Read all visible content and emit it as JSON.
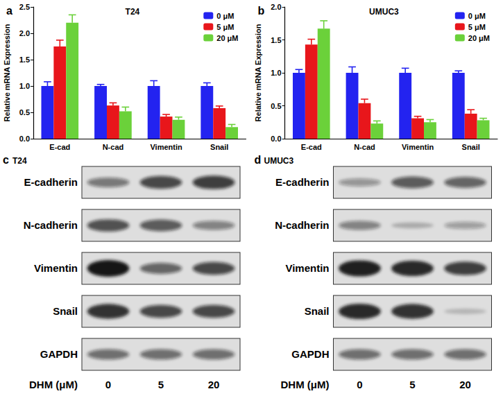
{
  "chart_data": [
    {
      "type": "bar",
      "panel": "a",
      "title": "T24",
      "y_label": "Relative mRNA Expression",
      "categories": [
        "E-cad",
        "N-cad",
        "Vimentin",
        "Snail"
      ],
      "series": [
        {
          "name": "0 μM",
          "color": "#2323f0",
          "values": [
            1.0,
            1.0,
            1.0,
            1.0
          ],
          "errors": [
            0.08,
            0.03,
            0.1,
            0.06
          ]
        },
        {
          "name": "5 μM",
          "color": "#e8161b",
          "values": [
            1.75,
            0.63,
            0.42,
            0.58
          ],
          "errors": [
            0.12,
            0.05,
            0.04,
            0.04
          ]
        },
        {
          "name": "20 μM",
          "color": "#6bd13a",
          "values": [
            2.2,
            0.52,
            0.36,
            0.22
          ],
          "errors": [
            0.15,
            0.08,
            0.05,
            0.05
          ]
        }
      ],
      "ylim": [
        0,
        2.5
      ],
      "yticks": [
        {
          "value": 0,
          "label": "0.0"
        },
        0.5,
        {
          "value": 1,
          "label": "1.0"
        },
        1.5,
        {
          "value": 2,
          "label": "2.0"
        },
        2.5
      ],
      "grid": false,
      "legend": "upper right"
    },
    {
      "type": "bar",
      "panel": "b",
      "title": "UMUC3",
      "y_label": "Relative mRNA Expression",
      "categories": [
        "E-cad",
        "N-cad",
        "Vimentin",
        "Snail"
      ],
      "series": [
        {
          "name": "0 μM",
          "color": "#2323f0",
          "values": [
            1.0,
            1.0,
            1.0,
            1.0
          ],
          "errors": [
            0.05,
            0.09,
            0.07,
            0.03
          ]
        },
        {
          "name": "5 μM",
          "color": "#e8161b",
          "values": [
            1.43,
            0.54,
            0.31,
            0.38
          ],
          "errors": [
            0.08,
            0.06,
            0.03,
            0.06
          ]
        },
        {
          "name": "20 μM",
          "color": "#6bd13a",
          "values": [
            1.67,
            0.23,
            0.25,
            0.28
          ],
          "errors": [
            0.12,
            0.04,
            0.04,
            0.03
          ]
        }
      ],
      "ylim": [
        0,
        2
      ],
      "yticks": [
        {
          "value": 0,
          "label": "0.0"
        },
        0.5,
        {
          "value": 1,
          "label": "1.0"
        },
        1.5,
        {
          "value": 2,
          "label": "2.0"
        }
      ],
      "grid": false,
      "legend": "upper right"
    }
  ],
  "blots": [
    {
      "panel": "c",
      "cell_line": "T24",
      "treatment": "DHM (μM)",
      "doses": [
        0,
        5,
        20
      ],
      "rows": [
        {
          "protein": "E-cadherin",
          "band_intensity": [
            0.45,
            0.7,
            0.75
          ]
        },
        {
          "protein": "N-cadherin",
          "band_intensity": [
            0.65,
            0.6,
            0.4
          ]
        },
        {
          "protein": "Vimentin",
          "band_intensity": [
            1.0,
            0.55,
            0.7
          ]
        },
        {
          "protein": "Snail",
          "band_intensity": [
            0.85,
            0.7,
            0.7
          ]
        },
        {
          "protein": "GAPDH",
          "band_intensity": [
            0.5,
            0.5,
            0.5
          ]
        }
      ]
    },
    {
      "panel": "d",
      "cell_line": "UMUC3",
      "treatment": "DHM (μM)",
      "doses": [
        0,
        5,
        20
      ],
      "rows": [
        {
          "protein": "E-cadherin",
          "band_intensity": [
            0.3,
            0.6,
            0.55
          ]
        },
        {
          "protein": "N-cadherin",
          "band_intensity": [
            0.4,
            0.15,
            0.25
          ]
        },
        {
          "protein": "Vimentin",
          "band_intensity": [
            0.95,
            0.9,
            0.75
          ]
        },
        {
          "protein": "Snail",
          "band_intensity": [
            0.9,
            0.85,
            0.1
          ]
        },
        {
          "protein": "GAPDH",
          "band_intensity": [
            0.5,
            0.5,
            0.5
          ]
        }
      ]
    }
  ]
}
